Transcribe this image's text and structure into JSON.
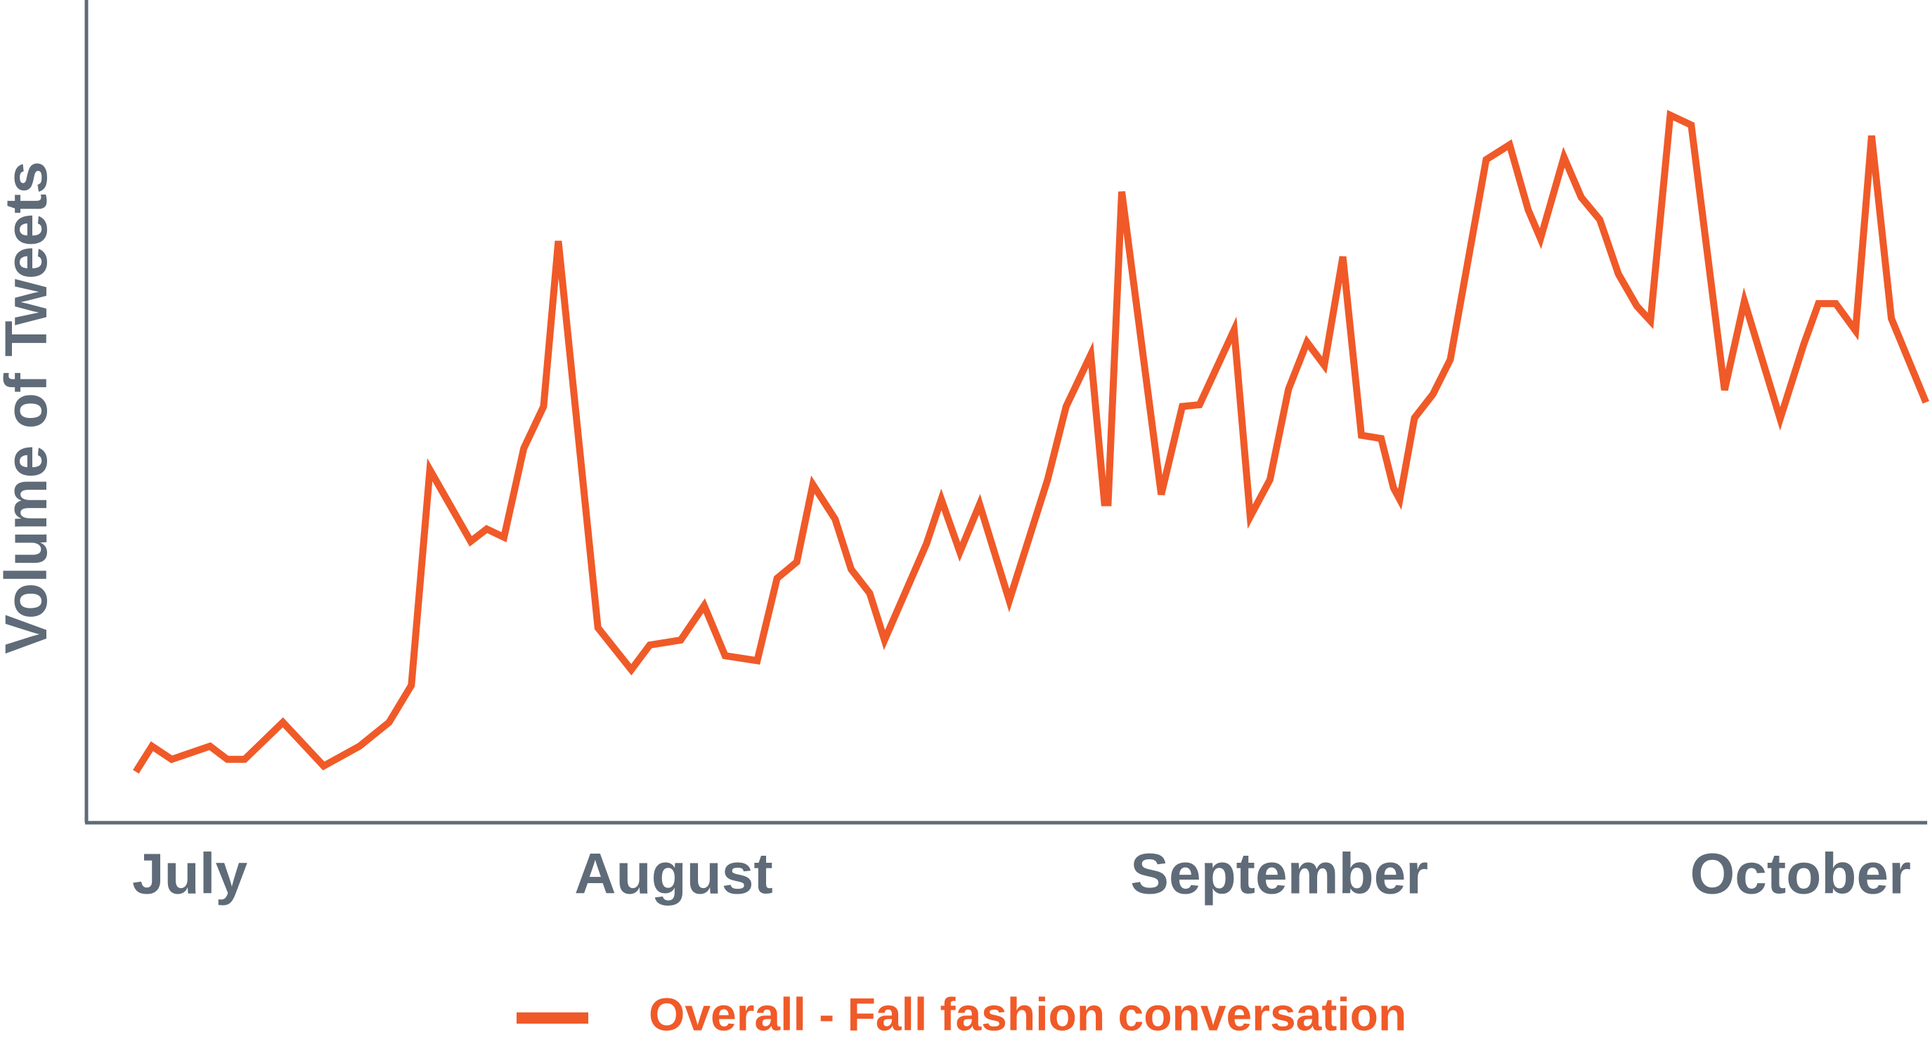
{
  "chart_data": {
    "type": "line",
    "ylabel": "Volume of Tweets",
    "x": [
      110,
      123,
      139,
      170,
      184,
      198,
      229,
      262,
      291,
      315,
      333,
      348,
      381,
      394,
      408,
      424,
      440,
      452,
      484,
      511,
      526,
      551,
      570,
      587,
      613,
      629,
      645,
      658,
      676,
      689,
      704,
      716,
      750,
      762,
      777,
      793,
      817,
      848,
      863,
      883,
      894,
      897,
      908,
      940,
      957,
      971,
      999,
      1012,
      1028,
      1043,
      1058,
      1072,
      1087,
      1102,
      1118,
      1128,
      1133,
      1145,
      1160,
      1174,
      1203,
      1222,
      1237,
      1247,
      1266,
      1280,
      1295,
      1310,
      1325,
      1336,
      1352,
      1369,
      1396,
      1412,
      1441,
      1460,
      1472,
      1486,
      1502,
      1515,
      1531,
      1559
    ],
    "series": [
      {
        "name": "Overall - Fall fashion conversation",
        "color": "#f05a28",
        "values": [
          6.2,
          9.3,
          7.7,
          9.3,
          7.7,
          7.7,
          12.2,
          6.9,
          9.3,
          12.2,
          16.7,
          42.9,
          34.2,
          35.7,
          34.7,
          45.5,
          50.6,
          70.7,
          23.7,
          18.6,
          21.6,
          22.2,
          26.4,
          20.3,
          19.7,
          29.7,
          31.7,
          41.1,
          36.9,
          30.8,
          27.9,
          22.2,
          33.9,
          39.3,
          32.9,
          38.7,
          27.0,
          41.7,
          50.6,
          56.9,
          38.9,
          38.9,
          76.7,
          39.9,
          50.6,
          50.8,
          59.9,
          37.2,
          41.7,
          52.7,
          58.4,
          55.6,
          68.8,
          47.1,
          46.7,
          40.7,
          39.3,
          49.2,
          52.1,
          56.3,
          80.6,
          82.4,
          74.5,
          71.0,
          80.9,
          76.0,
          73.3,
          66.7,
          62.8,
          61.0,
          86.0,
          84.8,
          52.6,
          63.4,
          49.1,
          58.1,
          63.1,
          63.1,
          59.8,
          83.5,
          61.3,
          51.1
        ]
      }
    ],
    "xlim": [
      70,
      1560
    ],
    "xticks": [
      {
        "value": 107,
        "label": "July"
      },
      {
        "value": 465,
        "label": "August"
      },
      {
        "value": 915,
        "label": "September"
      },
      {
        "value": 1368,
        "label": "October"
      }
    ],
    "ylim": [
      0,
      100
    ],
    "legend": "bottom"
  }
}
